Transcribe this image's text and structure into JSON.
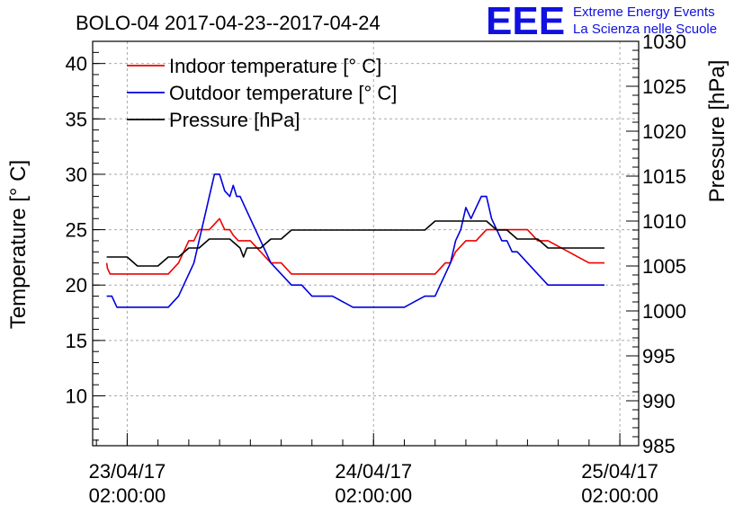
{
  "chart_data": {
    "type": "line",
    "title": "BOLO-04 2017-04-23--2017-04-24",
    "logo": {
      "text": "EEE",
      "line1": "Extreme Energy Events",
      "line2": "La Scienza nelle Scuole",
      "color": "#1010e0"
    },
    "ylabel": "Temperature [° C]",
    "y2label": "Pressure [hPa]",
    "ylim": [
      5.5,
      42
    ],
    "y2lim": [
      985,
      1030
    ],
    "xlim": [
      "2017-04-22T22:38:00",
      "2017-04-25T03:50:00"
    ],
    "yticks": [
      "10",
      "15",
      "20",
      "25",
      "30",
      "35",
      "40"
    ],
    "y2ticks": [
      "985",
      "990",
      "995",
      "1000",
      "1005",
      "1010",
      "1015",
      "1020",
      "1025",
      "1030"
    ],
    "xticks": [
      {
        "x": "2017-04-23T02:00:00",
        "date": "23/04/17",
        "time": "02:00:00"
      },
      {
        "x": "2017-04-24T02:00:00",
        "date": "24/04/17",
        "time": "02:00:00"
      },
      {
        "x": "2017-04-25T02:00:00",
        "date": "25/04/17",
        "time": "02:00:00"
      }
    ],
    "grid": true,
    "legend_position": "top-left",
    "series": [
      {
        "name": "Indoor temperature [° C]",
        "axis": "left",
        "color": "#ee0000",
        "x": [
          "2017-04-23T00:00:00",
          "2017-04-23T00:05:00",
          "2017-04-23T00:20:00",
          "2017-04-23T01:00:00",
          "2017-04-23T02:00:00",
          "2017-04-23T03:00:00",
          "2017-04-23T04:00:00",
          "2017-04-23T05:00:00",
          "2017-04-23T06:00:00",
          "2017-04-23T07:00:00",
          "2017-04-23T07:30:00",
          "2017-04-23T08:00:00",
          "2017-04-23T08:30:00",
          "2017-04-23T09:00:00",
          "2017-04-23T09:30:00",
          "2017-04-23T10:00:00",
          "2017-04-23T11:00:00",
          "2017-04-23T11:30:00",
          "2017-04-23T12:00:00",
          "2017-04-23T12:20:00",
          "2017-04-23T12:50:00",
          "2017-04-23T13:10:00",
          "2017-04-23T13:30:00",
          "2017-04-23T14:00:00",
          "2017-04-23T15:00:00",
          "2017-04-23T16:00:00",
          "2017-04-23T17:00:00",
          "2017-04-23T18:00:00",
          "2017-04-23T19:00:00",
          "2017-04-23T20:00:00",
          "2017-04-23T21:00:00",
          "2017-04-23T22:00:00",
          "2017-04-24T00:00:00",
          "2017-04-24T02:00:00",
          "2017-04-24T04:00:00",
          "2017-04-24T06:00:00",
          "2017-04-24T08:00:00",
          "2017-04-24T09:00:00",
          "2017-04-24T09:30:00",
          "2017-04-24T10:00:00",
          "2017-04-24T11:00:00",
          "2017-04-24T12:00:00",
          "2017-04-24T13:00:00",
          "2017-04-24T14:00:00",
          "2017-04-24T15:00:00",
          "2017-04-24T16:00:00",
          "2017-04-24T17:00:00",
          "2017-04-24T18:00:00",
          "2017-04-24T19:00:00",
          "2017-04-24T20:00:00",
          "2017-04-24T21:00:00",
          "2017-04-24T22:00:00",
          "2017-04-24T23:00:00",
          "2017-04-25T00:00:00",
          "2017-04-25T00:30:00"
        ],
        "y": [
          22,
          21.5,
          21,
          21,
          21,
          21,
          21,
          21,
          21,
          22,
          23,
          24,
          24,
          25,
          25,
          25,
          26,
          25,
          25,
          24.5,
          24,
          24,
          24,
          24,
          23,
          22,
          22,
          21,
          21,
          21,
          21,
          21,
          21,
          21,
          21,
          21,
          21,
          22,
          22,
          23,
          24,
          24,
          25,
          25,
          25,
          25,
          25,
          24,
          24,
          23.5,
          23,
          22.5,
          22,
          22,
          22
        ]
      },
      {
        "name": "Outdoor temperature [° C]",
        "axis": "left",
        "color": "#0000dd",
        "x": [
          "2017-04-23T00:00:00",
          "2017-04-23T00:30:00",
          "2017-04-23T01:00:00",
          "2017-04-23T02:00:00",
          "2017-04-23T03:00:00",
          "2017-04-23T04:00:00",
          "2017-04-23T05:00:00",
          "2017-04-23T06:00:00",
          "2017-04-23T06:30:00",
          "2017-04-23T07:00:00",
          "2017-04-23T07:30:00",
          "2017-04-23T08:00:00",
          "2017-04-23T08:30:00",
          "2017-04-23T09:00:00",
          "2017-04-23T09:30:00",
          "2017-04-23T10:00:00",
          "2017-04-23T10:30:00",
          "2017-04-23T11:00:00",
          "2017-04-23T11:30:00",
          "2017-04-23T12:00:00",
          "2017-04-23T12:20:00",
          "2017-04-23T12:40:00",
          "2017-04-23T13:00:00",
          "2017-04-23T13:30:00",
          "2017-04-23T14:00:00",
          "2017-04-23T14:30:00",
          "2017-04-23T15:00:00",
          "2017-04-23T15:30:00",
          "2017-04-23T16:00:00",
          "2017-04-23T17:00:00",
          "2017-04-23T18:00:00",
          "2017-04-23T19:00:00",
          "2017-04-23T20:00:00",
          "2017-04-23T21:00:00",
          "2017-04-23T22:00:00",
          "2017-04-24T00:00:00",
          "2017-04-24T02:00:00",
          "2017-04-24T04:00:00",
          "2017-04-24T05:00:00",
          "2017-04-24T06:00:00",
          "2017-04-24T07:00:00",
          "2017-04-24T08:00:00",
          "2017-04-24T08:30:00",
          "2017-04-24T09:00:00",
          "2017-04-24T09:30:00",
          "2017-04-24T10:00:00",
          "2017-04-24T10:30:00",
          "2017-04-24T11:00:00",
          "2017-04-24T11:30:00",
          "2017-04-24T12:00:00",
          "2017-04-24T12:30:00",
          "2017-04-24T13:00:00",
          "2017-04-24T13:30:00",
          "2017-04-24T14:00:00",
          "2017-04-24T14:30:00",
          "2017-04-24T15:00:00",
          "2017-04-24T15:30:00",
          "2017-04-24T16:00:00",
          "2017-04-24T17:00:00",
          "2017-04-24T18:00:00",
          "2017-04-24T19:00:00",
          "2017-04-24T20:00:00",
          "2017-04-24T20:30:00",
          "2017-04-24T21:00:00",
          "2017-04-24T22:00:00",
          "2017-04-24T23:00:00",
          "2017-04-25T00:00:00",
          "2017-04-25T00:30:00"
        ],
        "y": [
          19,
          19,
          18,
          18,
          18,
          18,
          18,
          18,
          18.5,
          19,
          20,
          21,
          22,
          24,
          26,
          28,
          30,
          30,
          28.5,
          28,
          29,
          28,
          28,
          27,
          26,
          25,
          24,
          23,
          22,
          21,
          20,
          20,
          19,
          19,
          19,
          18,
          18,
          18,
          18,
          18.5,
          19,
          19,
          20,
          21,
          22,
          24,
          25,
          27,
          26,
          27,
          28,
          28,
          26,
          25,
          24,
          24,
          23,
          23,
          22,
          21,
          20,
          20,
          20,
          20,
          20,
          20,
          20,
          20
        ],
        "_note": ""
      },
      {
        "name": "Pressure [hPa]",
        "axis": "right",
        "color": "#000000",
        "x": [
          "2017-04-23T00:00:00",
          "2017-04-23T01:00:00",
          "2017-04-23T02:00:00",
          "2017-04-23T03:00:00",
          "2017-04-23T04:00:00",
          "2017-04-23T05:00:00",
          "2017-04-23T06:00:00",
          "2017-04-23T07:00:00",
          "2017-04-23T08:00:00",
          "2017-04-23T09:00:00",
          "2017-04-23T10:00:00",
          "2017-04-23T11:00:00",
          "2017-04-23T12:00:00",
          "2017-04-23T13:00:00",
          "2017-04-23T13:20:00",
          "2017-04-23T13:40:00",
          "2017-04-23T14:00:00",
          "2017-04-23T15:00:00",
          "2017-04-23T16:00:00",
          "2017-04-23T17:00:00",
          "2017-04-23T18:00:00",
          "2017-04-23T20:00:00",
          "2017-04-23T22:00:00",
          "2017-04-24T00:00:00",
          "2017-04-24T02:00:00",
          "2017-04-24T04:00:00",
          "2017-04-24T06:00:00",
          "2017-04-24T07:00:00",
          "2017-04-24T08:00:00",
          "2017-04-24T09:00:00",
          "2017-04-24T10:00:00",
          "2017-04-24T11:00:00",
          "2017-04-24T12:00:00",
          "2017-04-24T13:00:00",
          "2017-04-24T14:00:00",
          "2017-04-24T15:00:00",
          "2017-04-24T16:00:00",
          "2017-04-24T17:00:00",
          "2017-04-24T18:00:00",
          "2017-04-24T19:00:00",
          "2017-04-24T20:00:00",
          "2017-04-24T21:00:00",
          "2017-04-24T22:00:00",
          "2017-04-24T23:00:00",
          "2017-04-25T00:00:00",
          "2017-04-25T00:30:00"
        ],
        "y": [
          1006,
          1006,
          1006,
          1005,
          1005,
          1005,
          1006,
          1006,
          1007,
          1007,
          1008,
          1008,
          1008,
          1007,
          1006,
          1007,
          1007,
          1007,
          1008,
          1008,
          1009,
          1009,
          1009,
          1009,
          1009,
          1009,
          1009,
          1009,
          1010,
          1010,
          1010,
          1010,
          1010,
          1010,
          1009,
          1009,
          1008,
          1008,
          1008,
          1007,
          1007,
          1007,
          1007,
          1007,
          1007,
          1007
        ]
      }
    ]
  }
}
